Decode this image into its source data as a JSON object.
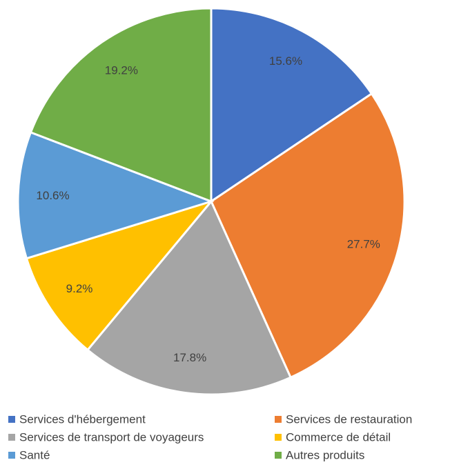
{
  "chart_data": {
    "type": "pie",
    "categories": [
      "Services d'hébergement",
      "Services de restauration",
      "Services de transport de voyageurs",
      "Commerce de détail",
      "Santé",
      "Autres produits"
    ],
    "values": [
      15.6,
      27.7,
      17.8,
      9.2,
      10.6,
      19.2
    ],
    "value_labels": [
      "15.6%",
      "27.7%",
      "17.8%",
      "9.2%",
      "10.6%",
      "19.2%"
    ],
    "colors": [
      "#4472c4",
      "#ed7d31",
      "#a5a5a5",
      "#ffc000",
      "#5b9bd5",
      "#70ad47"
    ],
    "legend": "bottom"
  }
}
